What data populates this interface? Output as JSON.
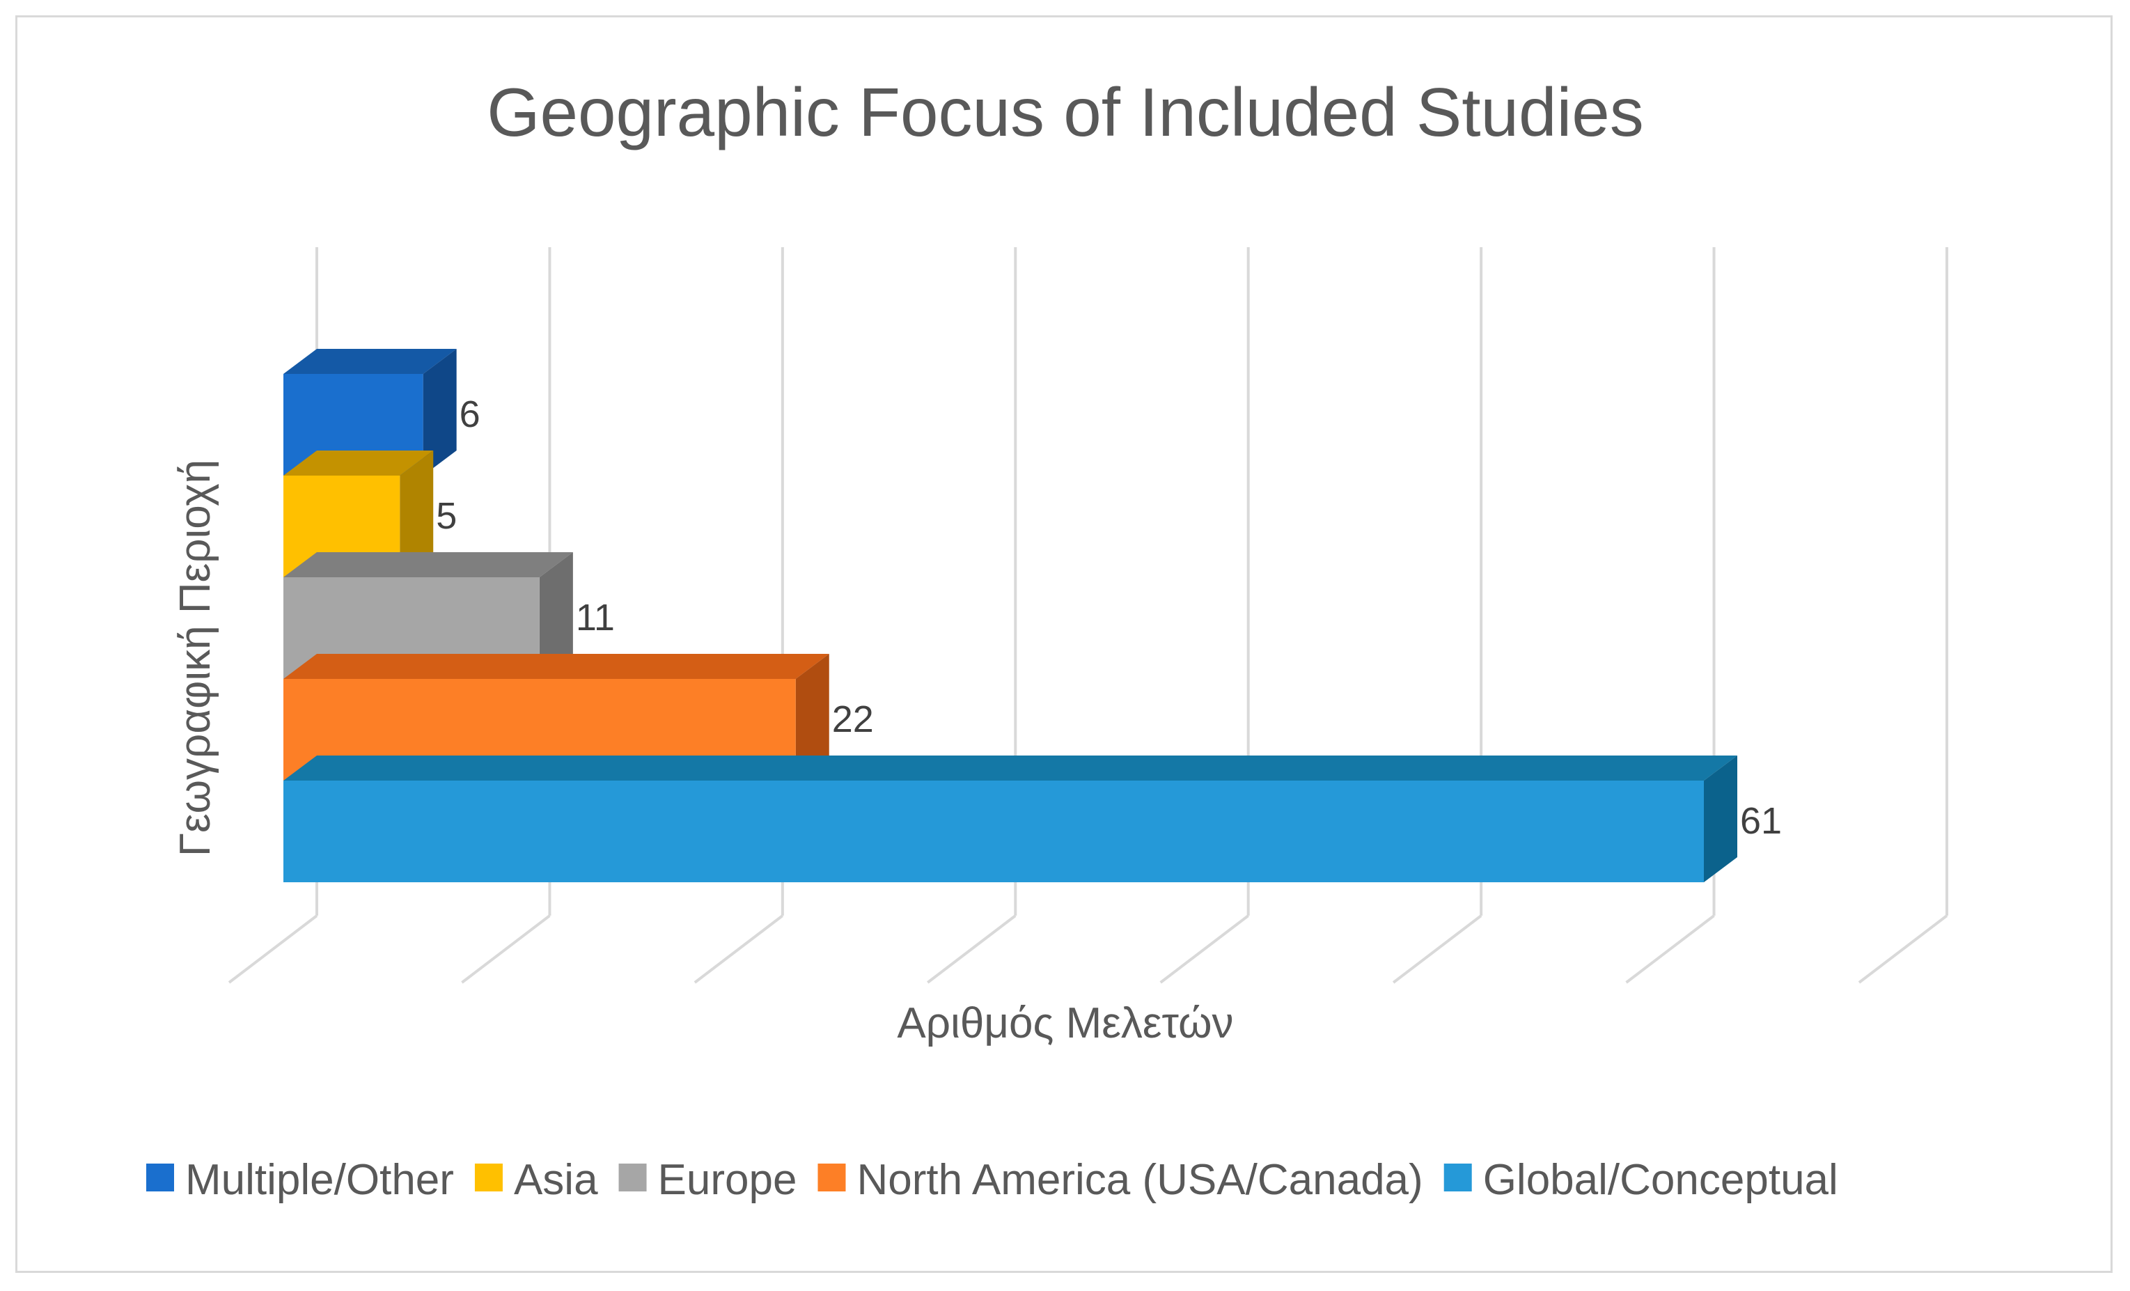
{
  "chart_data": {
    "type": "bar",
    "orientation": "horizontal",
    "style": "3d-stacked",
    "title": "Geographic Focus of Included Studies",
    "xlabel": "Αριθμός Μελετών",
    "ylabel": "Γεωγραφική Περιοχή",
    "xlim": [
      0,
      70
    ],
    "grid": true,
    "legend_position": "bottom",
    "series": [
      {
        "name": "Global/Conceptual",
        "value": 61,
        "color": "#2599D8",
        "top_color": "#1478A6",
        "side_color": "#0B628C"
      },
      {
        "name": "North America (USA/Canada)",
        "value": 22,
        "color": "#FD7F26",
        "top_color": "#D45E15",
        "side_color": "#B04D10"
      },
      {
        "name": "Europe",
        "value": 11,
        "color": "#A6A6A6",
        "top_color": "#7F7F7F",
        "side_color": "#6E6E6E"
      },
      {
        "name": "Asia",
        "value": 5,
        "color": "#FFC000",
        "top_color": "#C49200",
        "side_color": "#B08400"
      },
      {
        "name": "Multiple/Other",
        "value": 6,
        "color": "#1A6FCE",
        "top_color": "#1459A6",
        "side_color": "#0F4788"
      }
    ],
    "legend_order": [
      "Multiple/Other",
      "Asia",
      "Europe",
      "North America (USA/Canada)",
      "Global/Conceptual"
    ]
  }
}
